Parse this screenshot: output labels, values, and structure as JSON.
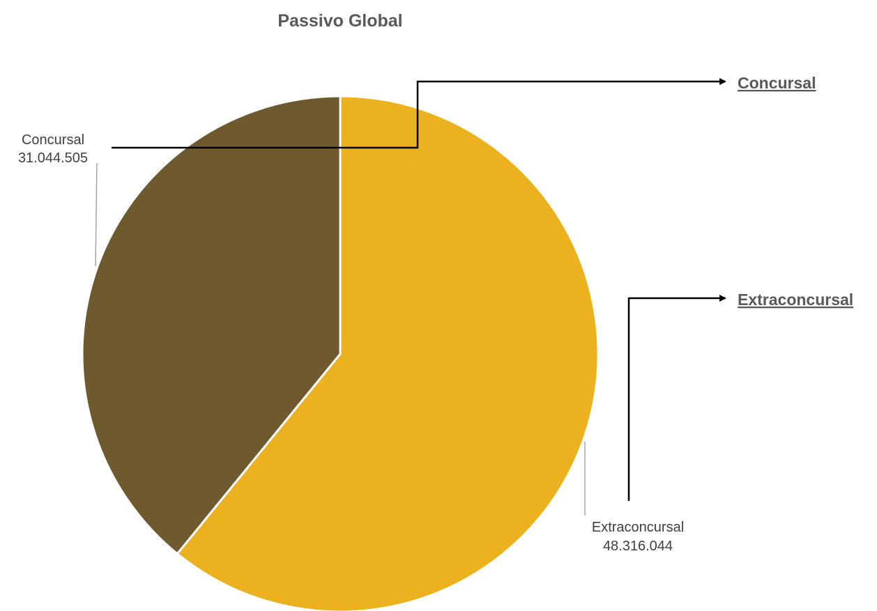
{
  "chart_data": {
    "type": "pie",
    "title": "Passivo Global",
    "slices": [
      {
        "label": "Extraconcursal",
        "value": 48316044,
        "display": "48.316.044",
        "color": "#EBB11F"
      },
      {
        "label": "Concursal",
        "value": 31044505,
        "display": "31.044.505",
        "color": "#6E5A2E"
      }
    ],
    "legend": "none"
  },
  "links": {
    "concursal": "Concursal",
    "extraconcursal": "Extraconcursal"
  },
  "colors": {
    "arrow": "#000000",
    "leader": "#A6A6A6",
    "slice_border": "#ffffff"
  }
}
